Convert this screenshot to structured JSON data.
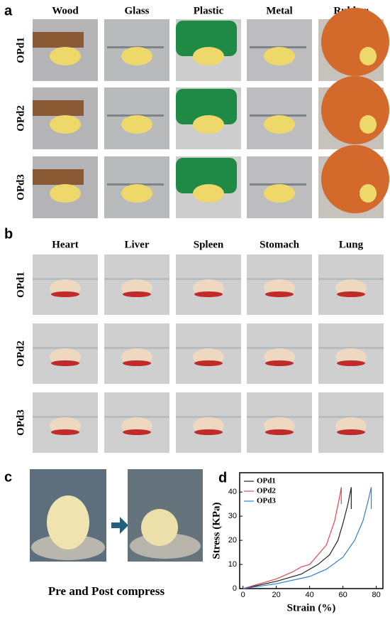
{
  "panel_a": {
    "label": "a",
    "columns": [
      "Wood",
      "Glass",
      "Plastic",
      "Metal",
      "Rubber"
    ],
    "rows": [
      "OPd1",
      "OPd2",
      "OPd3"
    ]
  },
  "panel_b": {
    "label": "b",
    "columns": [
      "Heart",
      "Liver",
      "Spleen",
      "Stomach",
      "Lung"
    ],
    "rows": [
      "OPd1",
      "OPd2",
      "OPd3"
    ]
  },
  "panel_c": {
    "label": "c",
    "caption": "Pre and Post compress"
  },
  "chart_data": {
    "type": "line",
    "label": "d",
    "x_label": "Strain (%)",
    "y_label": "Stress (KPa)",
    "xlim": [
      -2,
      84
    ],
    "ylim": [
      0,
      48
    ],
    "xticks": [
      0,
      20,
      40,
      60,
      80
    ],
    "yticks": [
      0,
      10,
      20,
      30,
      40
    ],
    "legend": "upper left",
    "series": [
      {
        "name": "OPd1",
        "color": "#222222",
        "x": [
          0,
          20,
          35,
          45,
          52,
          57,
          60,
          63,
          65,
          65
        ],
        "values": [
          0,
          3,
          6,
          10,
          14,
          20,
          27,
          35,
          42,
          33
        ]
      },
      {
        "name": "OPd2",
        "color": "#e8474f",
        "x": [
          0,
          10,
          20,
          30,
          35,
          40,
          45,
          50,
          55,
          58,
          59,
          59
        ],
        "values": [
          0,
          2,
          4,
          7,
          9,
          10,
          14,
          18,
          28,
          38,
          42,
          35
        ]
      },
      {
        "name": "OPd3",
        "color": "#2f7fd6",
        "x": [
          0,
          20,
          40,
          50,
          60,
          67,
          72,
          75,
          77,
          77
        ],
        "values": [
          0,
          2,
          5,
          8,
          13,
          20,
          28,
          36,
          42,
          33
        ]
      }
    ]
  }
}
